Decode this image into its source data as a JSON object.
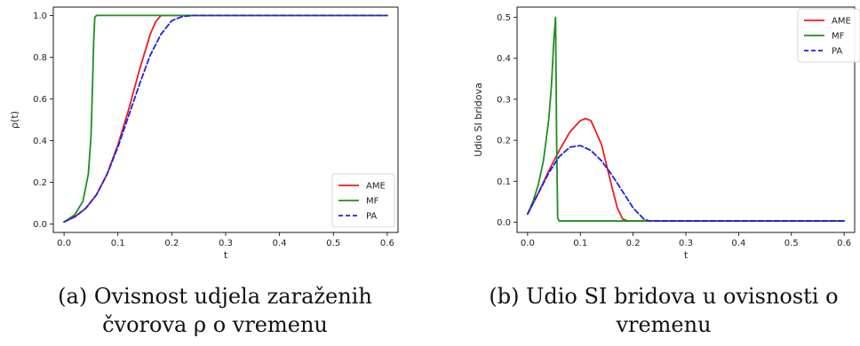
{
  "colors": {
    "AME": "#ee1c1c",
    "MF": "#1f8f1f",
    "PA": "#1f1fe8"
  },
  "captions": {
    "a": "(a) Ovisnost udjela zaraženih čvorova ρ o vremenu",
    "b": "(b) Udio SI bridova u ovisnosti o vremenu"
  },
  "chart_data": [
    {
      "type": "line",
      "xlabel": "t",
      "ylabel": "ρ(t)",
      "xlim": [
        -0.02,
        0.62
      ],
      "ylim": [
        -0.04,
        1.04
      ],
      "xticks": [
        "0.0",
        "0.1",
        "0.2",
        "0.3",
        "0.4",
        "0.5",
        "0.6"
      ],
      "yticks": [
        "0.0",
        "0.2",
        "0.4",
        "0.6",
        "0.8",
        "1.0"
      ],
      "legend": "bottom-right",
      "grid": false,
      "series": [
        {
          "name": "AME",
          "color": "#ee1c1c",
          "dash": "solid",
          "x": [
            0,
            0.02,
            0.04,
            0.06,
            0.08,
            0.1,
            0.12,
            0.14,
            0.16,
            0.17,
            0.18,
            0.2,
            0.6
          ],
          "y": [
            0.01,
            0.035,
            0.075,
            0.14,
            0.24,
            0.38,
            0.55,
            0.74,
            0.91,
            0.97,
            1.0,
            1.0,
            1.0
          ]
        },
        {
          "name": "MF",
          "color": "#1f8f1f",
          "dash": "solid",
          "x": [
            0,
            0.02,
            0.035,
            0.045,
            0.05,
            0.053,
            0.055,
            0.057,
            0.06,
            0.6
          ],
          "y": [
            0.01,
            0.045,
            0.11,
            0.24,
            0.42,
            0.68,
            0.88,
            0.99,
            1.0,
            1.0
          ]
        },
        {
          "name": "PA",
          "color": "#1f1fe8",
          "dash": "dashed",
          "x": [
            0,
            0.02,
            0.04,
            0.06,
            0.08,
            0.1,
            0.12,
            0.14,
            0.16,
            0.18,
            0.2,
            0.22,
            0.24,
            0.6
          ],
          "y": [
            0.01,
            0.035,
            0.075,
            0.14,
            0.24,
            0.37,
            0.52,
            0.67,
            0.81,
            0.91,
            0.975,
            0.995,
            1.0,
            1.0
          ]
        }
      ]
    },
    {
      "type": "line",
      "xlabel": "t",
      "ylabel": "Udio SI bridova",
      "xlim": [
        -0.02,
        0.62
      ],
      "ylim": [
        -0.025,
        0.525
      ],
      "xticks": [
        "0.0",
        "0.1",
        "0.2",
        "0.3",
        "0.4",
        "0.5",
        "0.6"
      ],
      "yticks": [
        "0.0",
        "0.1",
        "0.2",
        "0.3",
        "0.4",
        "0.5"
      ],
      "legend": "top-right",
      "grid": false,
      "series": [
        {
          "name": "AME",
          "color": "#ee1c1c",
          "dash": "solid",
          "x": [
            0,
            0.02,
            0.04,
            0.06,
            0.08,
            0.1,
            0.11,
            0.12,
            0.14,
            0.16,
            0.17,
            0.18,
            0.19,
            0.6
          ],
          "y": [
            0.02,
            0.07,
            0.125,
            0.175,
            0.22,
            0.248,
            0.253,
            0.248,
            0.19,
            0.085,
            0.035,
            0.008,
            0.003,
            0.003
          ]
        },
        {
          "name": "MF",
          "color": "#1f8f1f",
          "dash": "solid",
          "x": [
            0,
            0.01,
            0.02,
            0.03,
            0.04,
            0.045,
            0.05,
            0.053,
            0.055,
            0.057,
            0.06,
            0.6
          ],
          "y": [
            0.02,
            0.05,
            0.09,
            0.15,
            0.25,
            0.33,
            0.45,
            0.5,
            0.2,
            0.01,
            0.003,
            0.003
          ]
        },
        {
          "name": "PA",
          "color": "#1f1fe8",
          "dash": "dashed",
          "x": [
            0,
            0.02,
            0.04,
            0.06,
            0.08,
            0.1,
            0.12,
            0.14,
            0.16,
            0.18,
            0.2,
            0.22,
            0.23,
            0.6
          ],
          "y": [
            0.02,
            0.07,
            0.12,
            0.16,
            0.183,
            0.187,
            0.175,
            0.15,
            0.115,
            0.075,
            0.035,
            0.008,
            0.003,
            0.003
          ]
        }
      ]
    }
  ]
}
